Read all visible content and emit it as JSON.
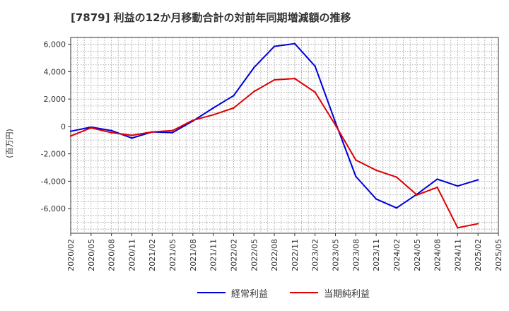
{
  "chart_data": {
    "type": "line",
    "title": "[7879]  利益の12か月移動合計の対前年同期増減額の推移",
    "xlabel": "",
    "ylabel": "(百万円)",
    "categories": [
      "2020/02",
      "2020/05",
      "2020/08",
      "2020/11",
      "2021/02",
      "2021/05",
      "2021/08",
      "2021/11",
      "2022/02",
      "2022/05",
      "2022/08",
      "2022/11",
      "2023/02",
      "2023/05",
      "2023/08",
      "2023/11",
      "2024/02",
      "2024/05",
      "2024/08",
      "2024/11",
      "2025/02",
      "2025/05"
    ],
    "ylim": [
      -7800,
      6500
    ],
    "yticks": [
      -6000,
      -4000,
      -2000,
      0,
      2000,
      4000,
      6000
    ],
    "ytick_labels": [
      "-6,000",
      "-4,000",
      "-2,000",
      "0",
      "2,000",
      "4,000",
      "6,000"
    ],
    "grid": true,
    "legend_position": "bottom",
    "series": [
      {
        "name": "経常利益",
        "color": "#0000dd",
        "values": [
          -350,
          -50,
          -300,
          -850,
          -400,
          -450,
          400,
          1350,
          2250,
          4300,
          5850,
          6050,
          4400,
          300,
          -3650,
          -5300,
          -5950,
          -4950,
          -3850,
          -4350,
          -3900,
          null
        ]
      },
      {
        "name": "当期純利益",
        "color": "#dd0000",
        "values": [
          -700,
          -100,
          -450,
          -650,
          -400,
          -300,
          450,
          850,
          1350,
          2550,
          3400,
          3500,
          2500,
          100,
          -2450,
          -3200,
          -3700,
          -5000,
          -4450,
          -7400,
          -7100,
          null
        ]
      }
    ]
  }
}
